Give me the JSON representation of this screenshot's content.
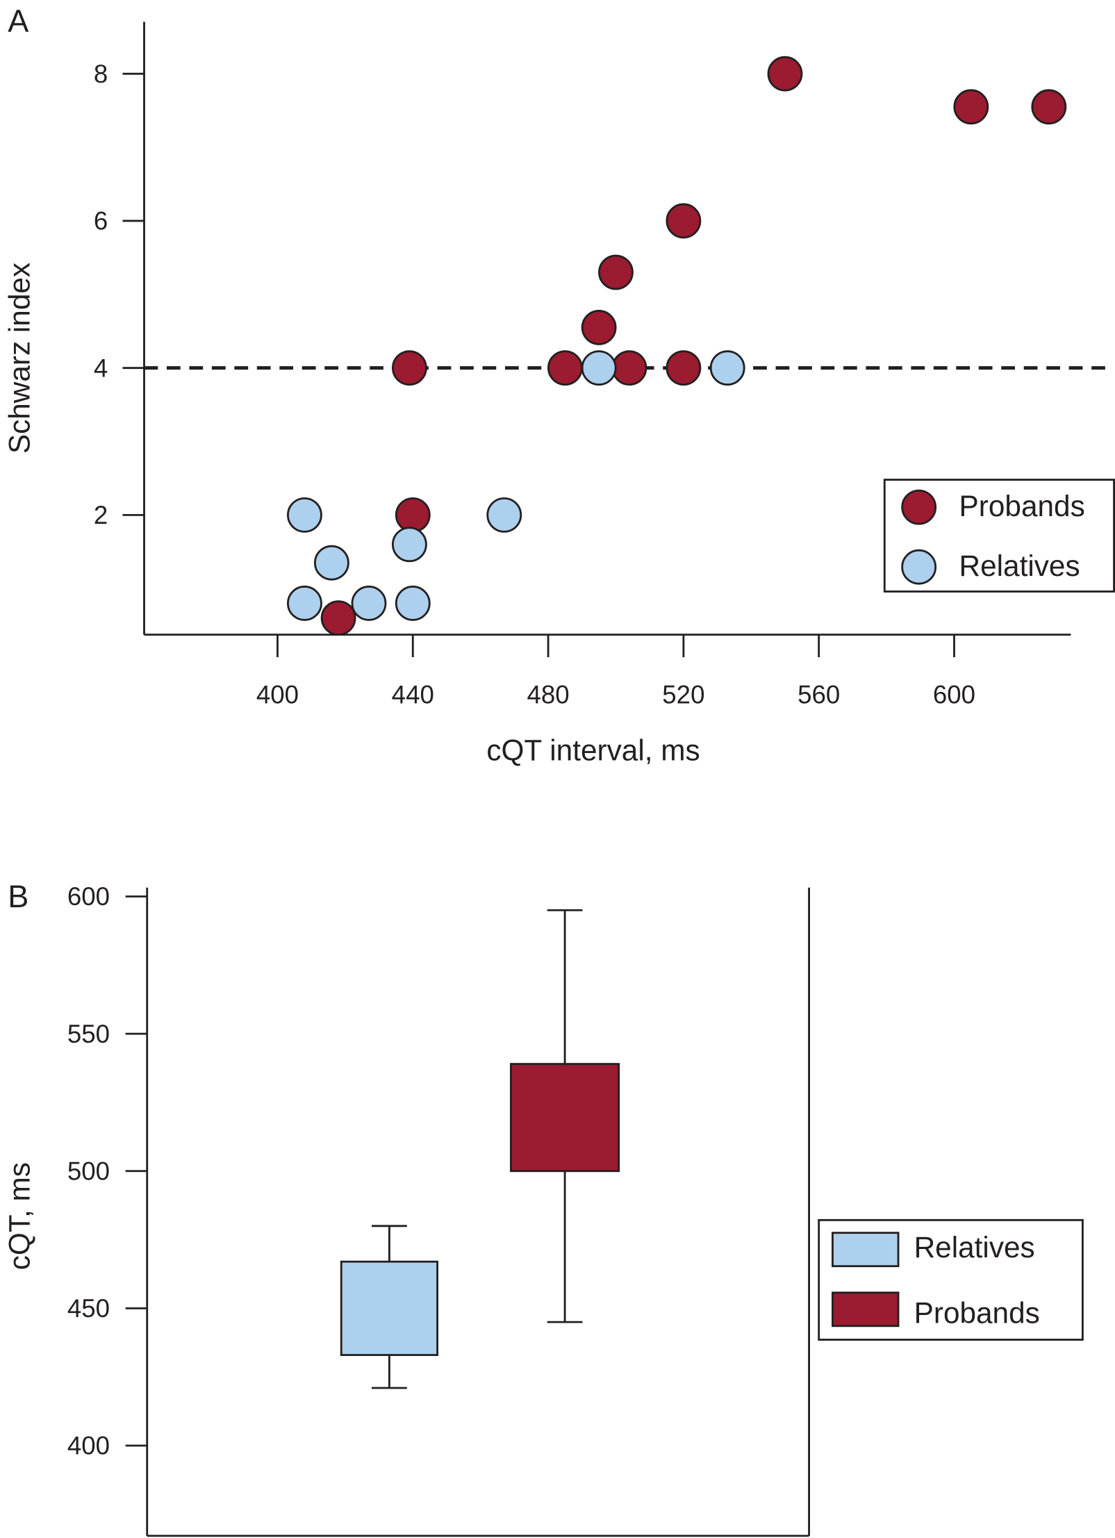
{
  "colors": {
    "probands": "#9b1b30",
    "relatives": "#acd0ee",
    "axis": "#231f20"
  },
  "chart_data": [
    {
      "panel_label": "A",
      "type": "scatter",
      "xlabel": "cQT interval, ms",
      "ylabel": "Schwarz index",
      "xlim": [
        360,
        632
      ],
      "ylim": [
        0.4,
        8.7
      ],
      "xticks": [
        400,
        440,
        480,
        520,
        560,
        600
      ],
      "yticks": [
        2,
        4,
        6,
        8
      ],
      "reference_line": {
        "y": 4,
        "style": "dashed"
      },
      "legend": {
        "placement": "right",
        "entries": [
          "Probands",
          "Relatives"
        ]
      },
      "series": [
        {
          "name": "Probands",
          "points": [
            [
              550,
              8
            ],
            [
              605,
              7.55
            ],
            [
              628,
              7.55
            ],
            [
              520,
              6
            ],
            [
              500,
              5.3
            ],
            [
              495,
              4.55
            ],
            [
              439,
              4
            ],
            [
              485,
              4
            ],
            [
              504,
              4
            ],
            [
              520,
              4
            ],
            [
              440,
              2
            ],
            [
              418,
              0.6
            ]
          ]
        },
        {
          "name": "Relatives",
          "points": [
            [
              495,
              4
            ],
            [
              533,
              4
            ],
            [
              408,
              2
            ],
            [
              467,
              2
            ],
            [
              416,
              1.35
            ],
            [
              439,
              1.6
            ],
            [
              408,
              0.8
            ],
            [
              427,
              0.8
            ],
            [
              440,
              0.8
            ]
          ]
        }
      ]
    },
    {
      "panel_label": "B",
      "type": "box",
      "ylabel": "cQT, ms",
      "ylim": [
        370,
        603
      ],
      "yticks": [
        400,
        450,
        500,
        550,
        600
      ],
      "legend": {
        "placement": "right",
        "entries": [
          "Relatives",
          "Probands"
        ]
      },
      "series": [
        {
          "name": "Relatives",
          "min": 421,
          "q1": 433,
          "q3": 467,
          "max": 480
        },
        {
          "name": "Probands",
          "min": 445,
          "q1": 500,
          "q3": 539,
          "max": 595
        }
      ]
    }
  ]
}
